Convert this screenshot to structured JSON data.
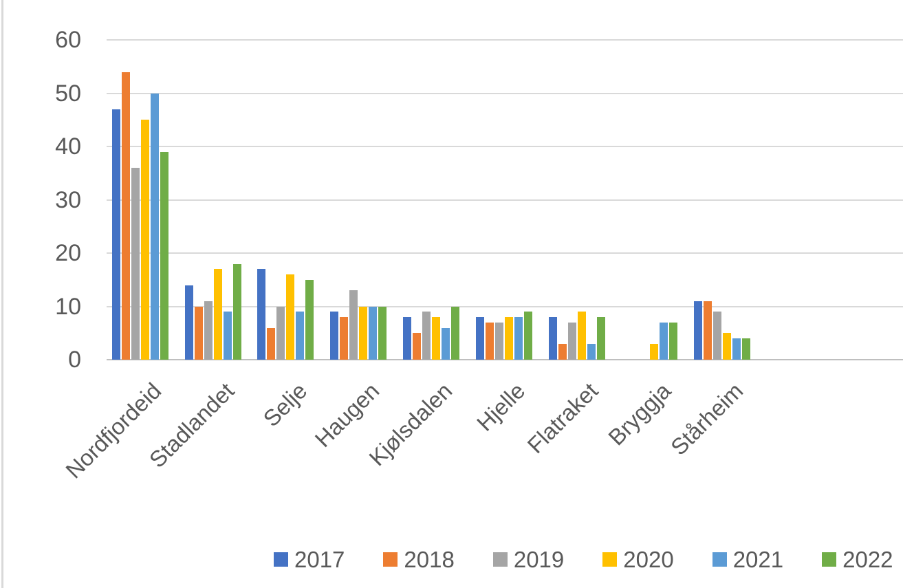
{
  "chart_data": {
    "type": "bar",
    "title": "",
    "categories": [
      "Nordfjordeid",
      "Stadlandet",
      "Selje",
      "Haugen",
      "Kjølsdalen",
      "Hjelle",
      "Flatraket",
      "Bryggja",
      "Stårheim"
    ],
    "series": [
      {
        "name": "2017",
        "color": "#4472C4",
        "values": [
          47,
          14,
          17,
          9,
          8,
          8,
          8,
          0,
          11
        ]
      },
      {
        "name": "2018",
        "color": "#ED7D31",
        "values": [
          54,
          10,
          6,
          8,
          5,
          7,
          3,
          0,
          11
        ]
      },
      {
        "name": "2019",
        "color": "#A5A5A5",
        "values": [
          36,
          11,
          10,
          13,
          9,
          7,
          7,
          0,
          9
        ]
      },
      {
        "name": "2020",
        "color": "#FFC000",
        "values": [
          45,
          17,
          16,
          10,
          8,
          8,
          9,
          3,
          5
        ]
      },
      {
        "name": "2021",
        "color": "#5B9BD5",
        "values": [
          50,
          9,
          9,
          10,
          6,
          8,
          3,
          7,
          4
        ]
      },
      {
        "name": "2022",
        "color": "#70AD47",
        "values": [
          39,
          18,
          15,
          10,
          10,
          9,
          8,
          7,
          4
        ]
      }
    ],
    "y_axis": {
      "min": 0,
      "max": 60,
      "step": 10,
      "tick_labels": [
        "0",
        "10",
        "20",
        "30",
        "40",
        "50",
        "60"
      ]
    },
    "x_axis": {
      "label_rotation_deg": 45
    },
    "legend": {
      "position": "bottom",
      "entries": [
        "2017",
        "2018",
        "2019",
        "2020",
        "2021",
        "2022"
      ]
    },
    "grid": true,
    "colors": {
      "gridline": "#D9D9D9",
      "axis_line": "#BFBFBF",
      "label_text": "#595959",
      "background": "#FFFFFF",
      "left_edge_line": "#D9D9D9"
    }
  }
}
